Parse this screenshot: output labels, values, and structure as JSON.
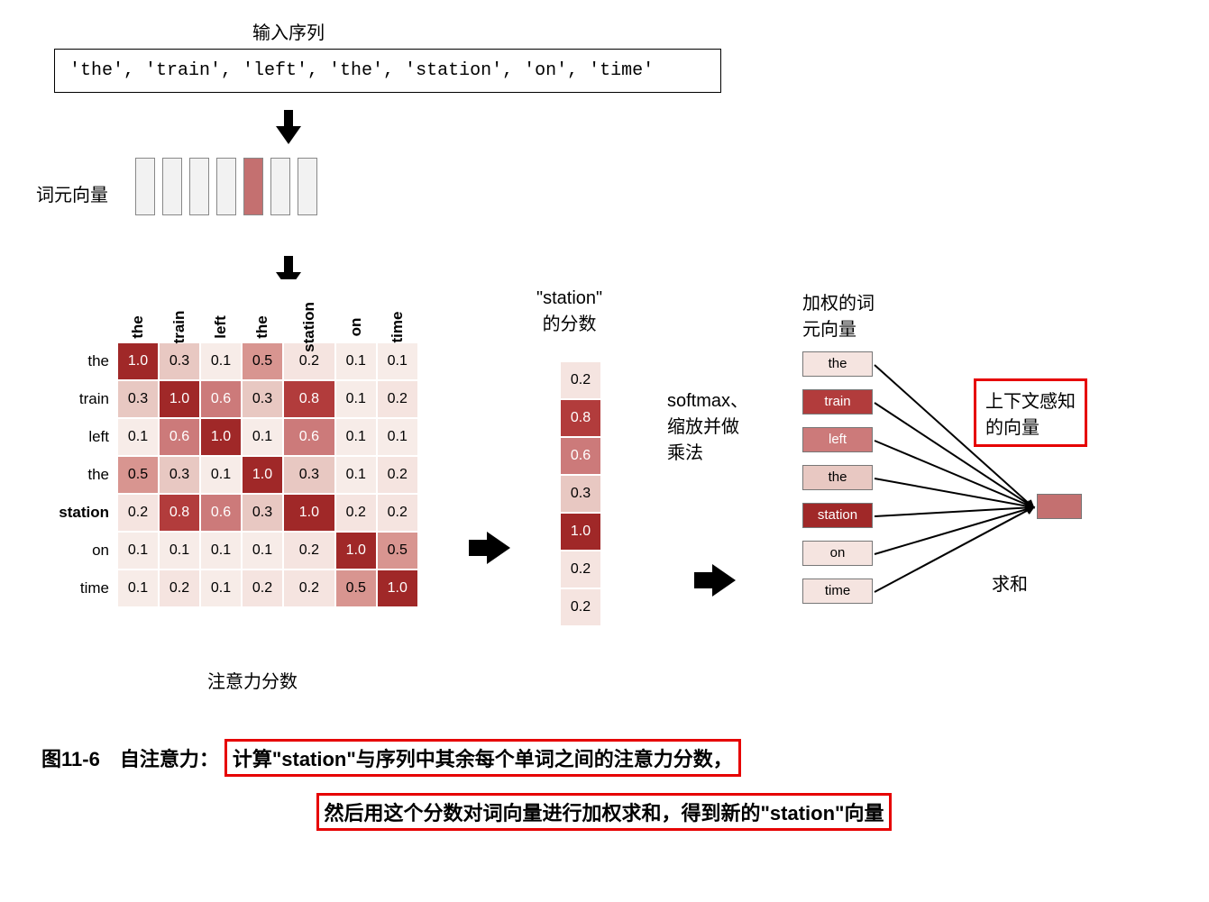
{
  "labels": {
    "input_seq": "输入序列",
    "token_vec": "词元向量",
    "attn_scores": "注意力分数",
    "station_score": "\"station\"\n的分数",
    "softmax": "softmax、\n缩放并做\n乘法",
    "weighted_vec": "加权的词\n元向量",
    "context_vec": "上下文感知\n的向量",
    "sum": "求和"
  },
  "input_sequence": "'the', 'train', 'left', 'the', 'station', 'on', 'time'",
  "tokens": [
    "the",
    "train",
    "left",
    "the",
    "station",
    "on",
    "time"
  ],
  "highlight_token_index": 4,
  "token_vec_colors": [
    "#f2f2f2",
    "#f2f2f2",
    "#f2f2f2",
    "#f2f2f2",
    "#c47070",
    "#f2f2f2",
    "#f2f2f2"
  ],
  "matrix": {
    "values": [
      [
        1.0,
        0.3,
        0.1,
        0.5,
        0.2,
        0.1,
        0.1
      ],
      [
        0.3,
        1.0,
        0.6,
        0.3,
        0.8,
        0.1,
        0.2
      ],
      [
        0.1,
        0.6,
        1.0,
        0.1,
        0.6,
        0.1,
        0.1
      ],
      [
        0.5,
        0.3,
        0.1,
        1.0,
        0.3,
        0.1,
        0.2
      ],
      [
        0.2,
        0.8,
        0.6,
        0.3,
        1.0,
        0.2,
        0.2
      ],
      [
        0.1,
        0.1,
        0.1,
        0.1,
        0.2,
        1.0,
        0.5
      ],
      [
        0.1,
        0.2,
        0.1,
        0.2,
        0.2,
        0.5,
        1.0
      ]
    ]
  },
  "station_column": [
    0.2,
    0.8,
    0.6,
    0.3,
    1.0,
    0.2,
    0.2
  ],
  "weighted_tokens": {
    "labels": [
      "the",
      "train",
      "left",
      "the",
      "station",
      "on",
      "time"
    ],
    "colors": [
      "#f5e4e0",
      "#b23c3c",
      "#cc7a7a",
      "#e8c8c2",
      "#a02828",
      "#f5e4e0",
      "#f5e4e0"
    ],
    "text_colors": [
      "#000",
      "#fff",
      "#fff",
      "#000",
      "#fff",
      "#000",
      "#000"
    ]
  },
  "context_color": "#c47070",
  "color_scale": {
    "0.1": {
      "bg": "#f7ece8",
      "fg": "#000"
    },
    "0.2": {
      "bg": "#f5e4e0",
      "fg": "#000"
    },
    "0.3": {
      "bg": "#e8c8c2",
      "fg": "#000"
    },
    "0.5": {
      "bg": "#d89590",
      "fg": "#000"
    },
    "0.6": {
      "bg": "#cc7a7a",
      "fg": "#fff"
    },
    "0.8": {
      "bg": "#b23c3c",
      "fg": "#fff"
    },
    "1.0": {
      "bg": "#a02828",
      "fg": "#fff"
    }
  },
  "caption": {
    "prefix": "图11-6　自注意力：",
    "line1": "计算\"station\"与序列中其余每个单词之间的注意力分数，",
    "line2": "然后用这个分数对词向量进行加权求和，得到新的\"station\"向量"
  }
}
